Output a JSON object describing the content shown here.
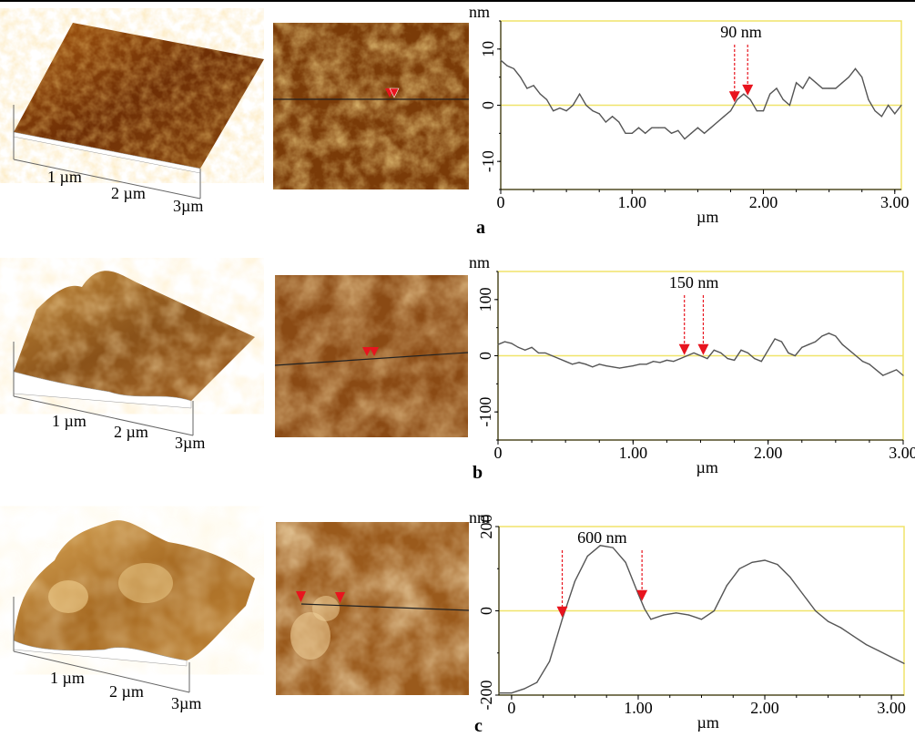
{
  "panels": [
    {
      "letter": "a",
      "surface_labels": [
        "1 µm",
        "2 µm",
        "3µm"
      ],
      "chart_data": {
        "type": "line",
        "ylabel": "nm",
        "xlabel": "µm",
        "xlim": [
          0,
          3.05
        ],
        "ylim": [
          -15,
          15
        ],
        "xticks": [
          0,
          1.0,
          2.0,
          3.0
        ],
        "xtick_labels": [
          "0",
          "1.00",
          "2.00",
          "3.00"
        ],
        "yticks": [
          10,
          0,
          -10
        ],
        "ytick_labels": [
          "10",
          "0",
          "-10"
        ],
        "annotation": "90 nm",
        "markers_x": [
          1.78,
          1.88
        ],
        "x": [
          0,
          0.05,
          0.1,
          0.15,
          0.2,
          0.25,
          0.3,
          0.35,
          0.4,
          0.45,
          0.5,
          0.55,
          0.6,
          0.65,
          0.7,
          0.75,
          0.8,
          0.85,
          0.9,
          0.95,
          1.0,
          1.05,
          1.1,
          1.15,
          1.2,
          1.25,
          1.3,
          1.35,
          1.4,
          1.45,
          1.5,
          1.55,
          1.6,
          1.65,
          1.7,
          1.75,
          1.8,
          1.85,
          1.9,
          1.95,
          2.0,
          2.05,
          2.1,
          2.15,
          2.2,
          2.25,
          2.3,
          2.35,
          2.4,
          2.45,
          2.5,
          2.55,
          2.6,
          2.65,
          2.7,
          2.75,
          2.8,
          2.85,
          2.9,
          2.95,
          3.0,
          3.05
        ],
        "y": [
          8,
          7,
          6.5,
          5,
          3,
          3.5,
          2,
          1,
          -1,
          -0.5,
          -1,
          0,
          2,
          0,
          -1,
          -1.5,
          -3,
          -2,
          -3,
          -5,
          -5,
          -4,
          -5,
          -4,
          -4,
          -4,
          -5,
          -4.5,
          -6,
          -5,
          -4,
          -5,
          -4,
          -3,
          -2,
          -1,
          1,
          2,
          1,
          -1,
          -1,
          2,
          3,
          1,
          0,
          4,
          3,
          5,
          4,
          3,
          3,
          3,
          4,
          5,
          6.5,
          5,
          1,
          -1,
          -2,
          0,
          -1.5,
          0
        ]
      }
    },
    {
      "letter": "b",
      "surface_labels": [
        "1 µm",
        "2 µm",
        "3µm"
      ],
      "chart_data": {
        "type": "line",
        "ylabel": "nm",
        "xlabel": "µm",
        "xlim": [
          0,
          3.0
        ],
        "ylim": [
          -150,
          150
        ],
        "xticks": [
          0,
          1.0,
          2.0,
          3.0
        ],
        "xtick_labels": [
          "0",
          "1.00",
          "2.00",
          "3.00"
        ],
        "yticks": [
          100,
          0,
          -100
        ],
        "ytick_labels": [
          "100",
          "0",
          "-100"
        ],
        "annotation": "150 nm",
        "markers_x": [
          1.38,
          1.52
        ],
        "x": [
          0,
          0.05,
          0.1,
          0.15,
          0.2,
          0.25,
          0.3,
          0.35,
          0.4,
          0.45,
          0.5,
          0.55,
          0.6,
          0.65,
          0.7,
          0.75,
          0.8,
          0.85,
          0.9,
          0.95,
          1.0,
          1.05,
          1.1,
          1.15,
          1.2,
          1.25,
          1.3,
          1.35,
          1.4,
          1.45,
          1.5,
          1.55,
          1.6,
          1.65,
          1.7,
          1.75,
          1.8,
          1.85,
          1.9,
          1.95,
          2.0,
          2.05,
          2.1,
          2.15,
          2.2,
          2.25,
          2.3,
          2.35,
          2.4,
          2.45,
          2.5,
          2.55,
          2.6,
          2.65,
          2.7,
          2.75,
          2.8,
          2.85,
          2.9,
          2.95,
          3.0
        ],
        "y": [
          20,
          25,
          22,
          15,
          10,
          15,
          5,
          5,
          0,
          -5,
          -10,
          -15,
          -12,
          -15,
          -20,
          -15,
          -18,
          -20,
          -22,
          -20,
          -18,
          -15,
          -15,
          -10,
          -12,
          -8,
          -10,
          -5,
          0,
          5,
          0,
          -5,
          10,
          5,
          -5,
          -8,
          10,
          5,
          -5,
          -10,
          10,
          30,
          25,
          5,
          0,
          15,
          20,
          25,
          35,
          40,
          35,
          20,
          10,
          0,
          -10,
          -15,
          -25,
          -35,
          -30,
          -25,
          -35
        ]
      }
    },
    {
      "letter": "c",
      "surface_labels": [
        "1 µm",
        "2 µm",
        "3µm"
      ],
      "chart_data": {
        "type": "line",
        "ylabel": "nm",
        "xlabel": "µm",
        "xlim": [
          -0.1,
          3.1
        ],
        "ylim": [
          -200,
          200
        ],
        "xticks": [
          0,
          1.0,
          2.0,
          3.0
        ],
        "xtick_labels": [
          "0",
          "1.00",
          "2.00",
          "3.00"
        ],
        "yticks": [
          200,
          0,
          -200
        ],
        "ytick_labels": [
          "200",
          "0",
          "-200"
        ],
        "annotation": "600 nm",
        "markers_x": [
          0.4,
          1.03
        ],
        "x": [
          -0.1,
          0,
          0.1,
          0.2,
          0.3,
          0.4,
          0.5,
          0.6,
          0.7,
          0.8,
          0.9,
          1.0,
          1.05,
          1.1,
          1.2,
          1.3,
          1.4,
          1.5,
          1.6,
          1.7,
          1.8,
          1.9,
          2.0,
          2.1,
          2.2,
          2.3,
          2.4,
          2.5,
          2.6,
          2.7,
          2.8,
          2.9,
          3.0,
          3.1
        ],
        "y": [
          -195,
          -195,
          -185,
          -170,
          -120,
          -20,
          70,
          130,
          155,
          150,
          115,
          40,
          5,
          -20,
          -10,
          -5,
          -10,
          -20,
          0,
          60,
          100,
          115,
          120,
          110,
          80,
          40,
          0,
          -25,
          -40,
          -60,
          -80,
          -95,
          -110,
          -125
        ]
      }
    }
  ]
}
